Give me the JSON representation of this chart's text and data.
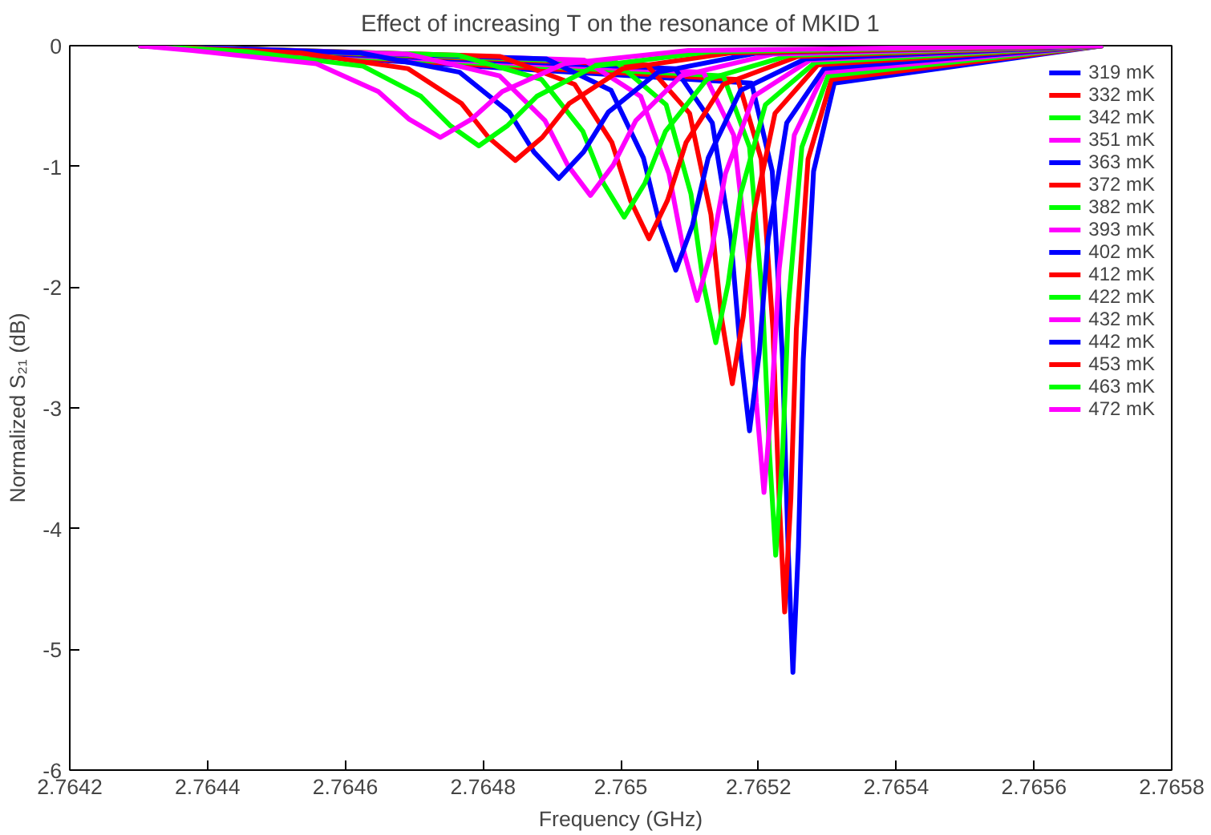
{
  "chart_data": {
    "type": "line",
    "title": "Effect of increasing T on the resonance of MKID 1",
    "xlabel": "Frequency (GHz)",
    "ylabel": "Normalized S₂₁ (dB)",
    "xlim": [
      2.7642,
      2.7658
    ],
    "xticks": [
      {
        "value": 2.7642,
        "label": "2.7642"
      },
      {
        "value": 2.7644,
        "label": "2.7644"
      },
      {
        "value": 2.7646,
        "label": "2.7646"
      },
      {
        "value": 2.7648,
        "label": "2.7648"
      },
      {
        "value": 2.765,
        "label": "2.765"
      },
      {
        "value": 2.7652,
        "label": "2.7652"
      },
      {
        "value": 2.7654,
        "label": "2.7654"
      },
      {
        "value": 2.7656,
        "label": "2.7656"
      },
      {
        "value": 2.7658,
        "label": "2.7658"
      }
    ],
    "ylim": [
      -6,
      0
    ],
    "yticks": [
      -6,
      -5,
      -4,
      -3,
      -2,
      -1,
      0
    ],
    "grid": false,
    "legend": "top right",
    "series": [
      {
        "name": "319 mK",
        "color": "#0000ff",
        "x": [
          2.7643,
          2.76519,
          2.76522,
          2.765235,
          2.765243,
          2.76525,
          2.765258,
          2.765265,
          2.76528,
          2.76531,
          2.7657
        ],
        "values": [
          0,
          -0.31,
          -1.04,
          -2.6,
          -4.15,
          -5.19,
          -4.15,
          -2.6,
          -1.04,
          -0.31,
          0
        ]
      },
      {
        "name": "332 mK",
        "color": "#ff0000",
        "x": [
          2.7643,
          2.76517,
          2.765204,
          2.765221,
          2.76523,
          2.765238,
          2.765247,
          2.765255,
          2.765272,
          2.765306,
          2.7657
        ],
        "values": [
          0,
          -0.28,
          -0.94,
          -2.35,
          -3.75,
          -4.69,
          -3.75,
          -2.35,
          -0.94,
          -0.28,
          0
        ]
      },
      {
        "name": "342 mK",
        "color": "#00ff00",
        "x": [
          2.7643,
          2.765149,
          2.765187,
          2.765206,
          2.765216,
          2.765225,
          2.765235,
          2.765244,
          2.765263,
          2.765301,
          2.7657
        ],
        "values": [
          0,
          -0.25,
          -0.84,
          -2.11,
          -3.38,
          -4.22,
          -3.38,
          -2.11,
          -0.84,
          -0.25,
          0
        ]
      },
      {
        "name": "351 mK",
        "color": "#ff00ff",
        "x": [
          2.7643,
          2.76512,
          2.765164,
          2.765186,
          2.765197,
          2.765208,
          2.765219,
          2.76523,
          2.765252,
          2.765296,
          2.7657
        ],
        "values": [
          0,
          -0.22,
          -0.74,
          -1.85,
          -2.96,
          -3.7,
          -2.96,
          -1.85,
          -0.74,
          -0.22,
          0
        ]
      },
      {
        "name": "363 mK",
        "color": "#0000ff",
        "x": [
          2.7643,
          2.765079,
          2.765133,
          2.76516,
          2.765174,
          2.765187,
          2.765201,
          2.765214,
          2.765241,
          2.765295,
          2.7657
        ],
        "values": [
          0,
          -0.19,
          -0.64,
          -1.6,
          -2.55,
          -3.19,
          -2.55,
          -1.6,
          -0.64,
          -0.19,
          0
        ]
      },
      {
        "name": "372 mK",
        "color": "#ff0000",
        "x": [
          2.7643,
          2.765038,
          2.7651,
          2.765131,
          2.765146,
          2.765162,
          2.765178,
          2.765193,
          2.765224,
          2.765286,
          2.7657
        ],
        "values": [
          0,
          -0.16,
          -0.56,
          -1.4,
          -2.24,
          -2.8,
          -2.24,
          -1.4,
          -0.56,
          -0.16,
          0
        ]
      },
      {
        "name": "382 mK",
        "color": "#00ff00",
        "x": [
          2.7643,
          2.764994,
          2.765066,
          2.765102,
          2.76512,
          2.765138,
          2.765156,
          2.765174,
          2.76521,
          2.765282,
          2.7657
        ],
        "values": [
          0,
          -0.14,
          -0.49,
          -1.23,
          -1.97,
          -2.46,
          -1.97,
          -1.23,
          -0.49,
          -0.14,
          0
        ]
      },
      {
        "name": "393 mK",
        "color": "#ff00ff",
        "x": [
          2.7643,
          2.764947,
          2.765029,
          2.76507,
          2.765091,
          2.765111,
          2.765132,
          2.765152,
          2.765193,
          2.765275,
          2.7657
        ],
        "values": [
          0,
          -0.12,
          -0.42,
          -1.06,
          -1.69,
          -2.11,
          -1.69,
          -1.06,
          -0.42,
          -0.12,
          0
        ]
      },
      {
        "name": "402 mK",
        "color": "#0000ff",
        "x": [
          2.7643,
          2.764892,
          2.764986,
          2.765033,
          2.765057,
          2.76508,
          2.765104,
          2.765127,
          2.765174,
          2.765268,
          2.7657
        ],
        "values": [
          0,
          -0.11,
          -0.37,
          -0.93,
          -1.49,
          -1.86,
          -1.49,
          -0.93,
          -0.37,
          -0.11,
          0
        ]
      },
      {
        "name": "412 mK",
        "color": "#ff0000",
        "x": [
          2.7643,
          2.764825,
          2.764933,
          2.764987,
          2.765014,
          2.765041,
          2.765068,
          2.765095,
          2.765149,
          2.765257,
          2.7657
        ],
        "values": [
          0,
          -0.09,
          -0.32,
          -0.8,
          -1.28,
          -1.6,
          -1.28,
          -0.8,
          -0.32,
          -0.09,
          0
        ]
      },
      {
        "name": "422 mK",
        "color": "#00ff00",
        "x": [
          2.7643,
          2.764765,
          2.764885,
          2.764945,
          2.764975,
          2.765005,
          2.765035,
          2.765065,
          2.765125,
          2.765245,
          2.7657
        ],
        "values": [
          0,
          -0.08,
          -0.28,
          -0.71,
          -1.14,
          -1.42,
          -1.14,
          -0.71,
          -0.28,
          -0.08,
          0
        ]
      },
      {
        "name": "432 mK",
        "color": "#ff00ff",
        "x": [
          2.7643,
          2.764692,
          2.764824,
          2.76489,
          2.764923,
          2.764956,
          2.764989,
          2.765022,
          2.765088,
          2.76522,
          2.7657
        ],
        "values": [
          0,
          -0.07,
          -0.25,
          -0.62,
          -0.99,
          -1.24,
          -0.99,
          -0.62,
          -0.25,
          -0.07,
          0
        ]
      },
      {
        "name": "442 mK",
        "color": "#0000ff",
        "x": [
          2.7643,
          2.764622,
          2.764766,
          2.764838,
          2.764874,
          2.76491,
          2.764946,
          2.764982,
          2.765054,
          2.765198,
          2.7657
        ],
        "values": [
          0,
          -0.06,
          -0.22,
          -0.55,
          -0.88,
          -1.1,
          -0.88,
          -0.55,
          -0.22,
          -0.06,
          0
        ]
      },
      {
        "name": "453 mK",
        "color": "#ff0000",
        "x": [
          2.7643,
          2.764535,
          2.764691,
          2.764769,
          2.764808,
          2.764847,
          2.764886,
          2.764925,
          2.765003,
          2.765159,
          2.7657
        ],
        "values": [
          0,
          -0.06,
          -0.19,
          -0.48,
          -0.76,
          -0.95,
          -0.76,
          -0.48,
          -0.19,
          -0.06,
          0
        ]
      },
      {
        "name": "463 mK",
        "color": "#00ff00",
        "x": [
          2.7643,
          2.764458,
          2.764626,
          2.76471,
          2.764752,
          2.764794,
          2.764836,
          2.764878,
          2.764962,
          2.76513,
          2.7657
        ],
        "values": [
          0,
          -0.05,
          -0.17,
          -0.42,
          -0.66,
          -0.83,
          -0.66,
          -0.42,
          -0.17,
          -0.05,
          0
        ]
      },
      {
        "name": "472 mK",
        "color": "#ff00ff",
        "x": [
          2.7643,
          2.764378,
          2.764558,
          2.764648,
          2.764693,
          2.764738,
          2.764783,
          2.764828,
          2.764918,
          2.765098,
          2.7657
        ],
        "values": [
          0,
          -0.04,
          -0.15,
          -0.38,
          -0.61,
          -0.76,
          -0.61,
          -0.38,
          -0.15,
          -0.04,
          0
        ]
      }
    ]
  }
}
